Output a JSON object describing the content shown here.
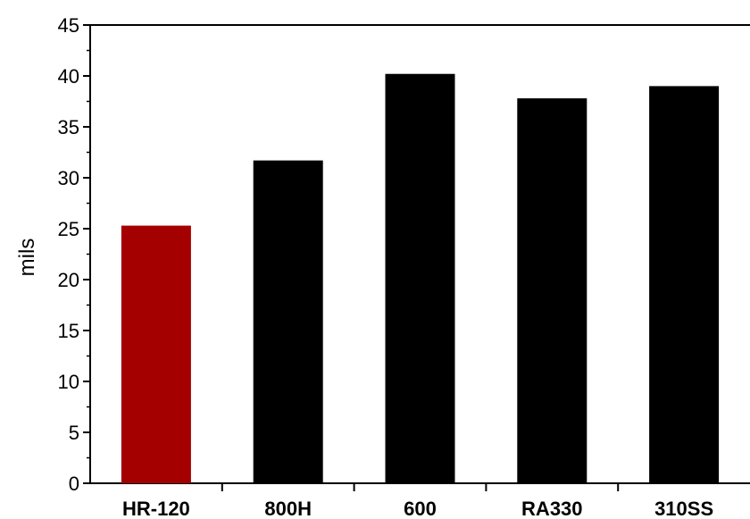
{
  "chart_data": {
    "type": "bar",
    "title": "",
    "xlabel": "",
    "ylabel": "mils",
    "categories": [
      "HR-120",
      "800H",
      "600",
      "RA330",
      "310SS"
    ],
    "values": [
      25.3,
      31.7,
      40.2,
      37.8,
      39.0
    ],
    "ylim": [
      0,
      45
    ],
    "yticks": [
      "0",
      "5",
      "10",
      "15",
      "20",
      "25",
      "30",
      "35",
      "40",
      "45"
    ],
    "grid": false,
    "legend": "none",
    "colors": {
      "highlight": "#a50000",
      "default": "#000000"
    },
    "highlight_index": 0
  }
}
